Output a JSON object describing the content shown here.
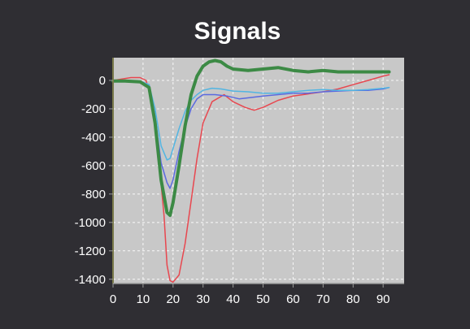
{
  "colors": {
    "background": "#2f2e33",
    "plot_background": "#c8c8c8",
    "grid": "#ffffff",
    "axis": "#9a9a9a",
    "text": "#ffffff"
  },
  "chart_data": {
    "type": "line",
    "title": "Signals",
    "xlabel": "",
    "ylabel": "",
    "xlim": [
      0,
      97
    ],
    "ylim": [
      -1430,
      160
    ],
    "xticks": [
      0,
      10,
      20,
      30,
      40,
      50,
      60,
      70,
      80,
      90
    ],
    "yticks": [
      0,
      -200,
      -400,
      -600,
      -800,
      -1000,
      -1200,
      -1400
    ],
    "grid": true,
    "legend": "none",
    "series": [
      {
        "color": "#e8474f",
        "width": 1.5,
        "points": [
          [
            0,
            0
          ],
          [
            3,
            10
          ],
          [
            6,
            20
          ],
          [
            9,
            20
          ],
          [
            11,
            0
          ],
          [
            13,
            -150
          ],
          [
            15,
            -500
          ],
          [
            17,
            -950
          ],
          [
            18,
            -1300
          ],
          [
            19,
            -1410
          ],
          [
            20,
            -1420
          ],
          [
            22,
            -1370
          ],
          [
            24,
            -1150
          ],
          [
            26,
            -850
          ],
          [
            28,
            -550
          ],
          [
            30,
            -300
          ],
          [
            33,
            -150
          ],
          [
            37,
            -100
          ],
          [
            40,
            -150
          ],
          [
            44,
            -190
          ],
          [
            47,
            -210
          ],
          [
            50,
            -190
          ],
          [
            55,
            -140
          ],
          [
            60,
            -110
          ],
          [
            65,
            -95
          ],
          [
            70,
            -80
          ],
          [
            75,
            -60
          ],
          [
            80,
            -30
          ],
          [
            85,
            0
          ],
          [
            90,
            30
          ],
          [
            92,
            40
          ]
        ]
      },
      {
        "color": "#5a6ae0",
        "width": 1.5,
        "points": [
          [
            0,
            0
          ],
          [
            4,
            0
          ],
          [
            9,
            -5
          ],
          [
            12,
            -30
          ],
          [
            14,
            -250
          ],
          [
            16,
            -580
          ],
          [
            18,
            -720
          ],
          [
            19,
            -760
          ],
          [
            20,
            -700
          ],
          [
            22,
            -500
          ],
          [
            24,
            -330
          ],
          [
            26,
            -200
          ],
          [
            28,
            -130
          ],
          [
            30,
            -100
          ],
          [
            34,
            -100
          ],
          [
            38,
            -110
          ],
          [
            42,
            -130
          ],
          [
            46,
            -120
          ],
          [
            50,
            -110
          ],
          [
            55,
            -100
          ],
          [
            60,
            -90
          ],
          [
            65,
            -90
          ],
          [
            70,
            -80
          ],
          [
            75,
            -75
          ],
          [
            80,
            -70
          ],
          [
            85,
            -70
          ],
          [
            90,
            -60
          ],
          [
            92,
            -50
          ]
        ]
      },
      {
        "color": "#52b5e2",
        "width": 1.5,
        "points": [
          [
            0,
            0
          ],
          [
            4,
            0
          ],
          [
            9,
            -5
          ],
          [
            12,
            -30
          ],
          [
            14,
            -200
          ],
          [
            16,
            -460
          ],
          [
            18,
            -560
          ],
          [
            19,
            -550
          ],
          [
            20,
            -480
          ],
          [
            22,
            -340
          ],
          [
            24,
            -220
          ],
          [
            26,
            -140
          ],
          [
            28,
            -100
          ],
          [
            30,
            -70
          ],
          [
            33,
            -55
          ],
          [
            36,
            -60
          ],
          [
            40,
            -75
          ],
          [
            45,
            -80
          ],
          [
            50,
            -90
          ],
          [
            55,
            -90
          ],
          [
            60,
            -80
          ],
          [
            65,
            -70
          ],
          [
            70,
            -65
          ],
          [
            75,
            -70
          ],
          [
            80,
            -70
          ],
          [
            85,
            -65
          ],
          [
            90,
            -55
          ],
          [
            92,
            -50
          ]
        ]
      },
      {
        "color": "#3c8a45",
        "width": 4,
        "points": [
          [
            0,
            -5
          ],
          [
            4,
            -5
          ],
          [
            9,
            -10
          ],
          [
            12,
            -50
          ],
          [
            14,
            -300
          ],
          [
            16,
            -700
          ],
          [
            18,
            -930
          ],
          [
            19,
            -950
          ],
          [
            20,
            -860
          ],
          [
            22,
            -600
          ],
          [
            24,
            -320
          ],
          [
            26,
            -100
          ],
          [
            28,
            30
          ],
          [
            30,
            100
          ],
          [
            32,
            130
          ],
          [
            34,
            140
          ],
          [
            36,
            130
          ],
          [
            38,
            100
          ],
          [
            40,
            80
          ],
          [
            45,
            70
          ],
          [
            50,
            80
          ],
          [
            55,
            90
          ],
          [
            60,
            70
          ],
          [
            65,
            60
          ],
          [
            70,
            70
          ],
          [
            75,
            60
          ],
          [
            80,
            60
          ],
          [
            85,
            60
          ],
          [
            90,
            60
          ],
          [
            92,
            60
          ]
        ]
      }
    ]
  }
}
